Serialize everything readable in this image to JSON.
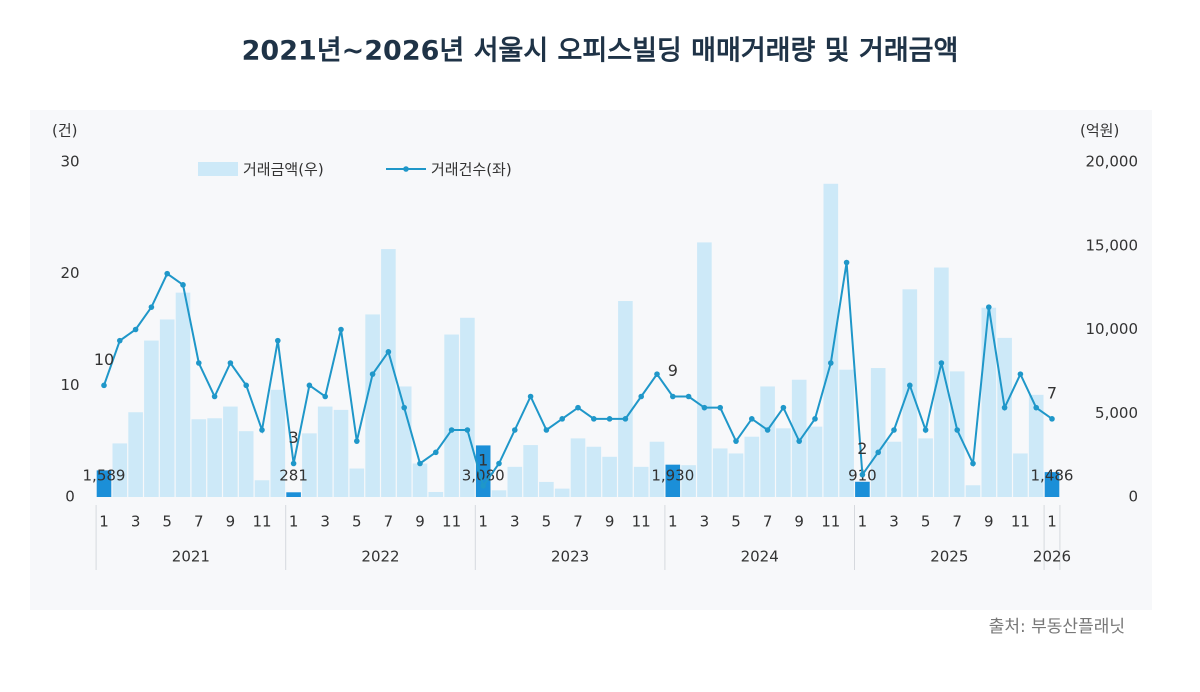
{
  "chart_data": {
    "type": "bar-line",
    "title": "2021년~2026년 서울시 오피스빌딩 매매거래량 및 거래금액",
    "source": "출처: 부동산플래닛",
    "y_label": "(건)",
    "y2_label": "(억원)",
    "categories": [
      "1",
      null,
      "3",
      null,
      "5",
      null,
      "7",
      null,
      "9",
      null,
      "11",
      null,
      "1",
      null,
      "3",
      null,
      "5",
      null,
      "7",
      null,
      "9",
      null,
      "11",
      null,
      "1",
      null,
      "3",
      null,
      "5",
      null,
      "7",
      null,
      "9",
      null,
      "11",
      null,
      "1",
      null,
      "3",
      null,
      "5",
      null,
      "7",
      null,
      "9",
      null,
      "11",
      null,
      "1",
      null,
      "3",
      null,
      "5",
      null,
      "7",
      null,
      "9",
      null,
      "11",
      null,
      "1"
    ],
    "years": [
      "2021",
      "2022",
      "2023",
      "2024",
      "2025",
      "2026"
    ],
    "ylim": [
      0,
      30
    ],
    "yticks": [
      0,
      10,
      20,
      30
    ],
    "y2lim": [
      0,
      20000
    ],
    "y2ticks": [
      {
        "value": 0,
        "label": "0"
      },
      {
        "value": 5000,
        "label": "5,000"
      },
      {
        "value": 10000,
        "label": "10,000"
      },
      {
        "value": 15000,
        "label": "15,000"
      },
      {
        "value": 20000,
        "label": "20,000"
      }
    ],
    "series": [
      {
        "name": "거래금액(우)",
        "type": "bar",
        "axis": "y2",
        "color": "#cde9f8",
        "highlight_color": "#1b8fd8",
        "values": [
          1589,
          3200,
          5060,
          9340,
          10600,
          12200,
          4640,
          4700,
          5400,
          3930,
          1000,
          6400,
          281,
          3800,
          5400,
          5200,
          1700,
          10900,
          14800,
          6600,
          2000,
          300,
          9700,
          10700,
          3080,
          400,
          1800,
          3100,
          900,
          500,
          3500,
          3000,
          2400,
          11700,
          1800,
          3300,
          1930,
          1900,
          15200,
          2900,
          2600,
          3600,
          6600,
          4100,
          7000,
          4200,
          18700,
          7600,
          910,
          7700,
          3300,
          12400,
          3500,
          13700,
          7500,
          700,
          11300,
          9500,
          2600,
          6100,
          1486
        ],
        "value_labels": [
          "1,589",
          null,
          null,
          null,
          null,
          null,
          null,
          null,
          null,
          null,
          null,
          null,
          "281",
          null,
          null,
          null,
          null,
          null,
          null,
          null,
          null,
          null,
          null,
          null,
          "3,080",
          null,
          null,
          null,
          null,
          null,
          null,
          null,
          null,
          null,
          null,
          null,
          "1,930",
          null,
          null,
          null,
          null,
          null,
          null,
          null,
          null,
          null,
          null,
          null,
          "910",
          null,
          null,
          null,
          null,
          null,
          null,
          null,
          null,
          null,
          null,
          null,
          "1,486"
        ]
      },
      {
        "name": "거래건수(좌)",
        "type": "line",
        "axis": "y",
        "color": "#1f97c9",
        "values": [
          10,
          14,
          15,
          17,
          20,
          19,
          12,
          9,
          12,
          10,
          6,
          14,
          3,
          10,
          9,
          15,
          5,
          11,
          13,
          8,
          3,
          4,
          6,
          6,
          1,
          3,
          6,
          9,
          6,
          7,
          8,
          7,
          7,
          7,
          9,
          11,
          9,
          9,
          8,
          8,
          5,
          7,
          6,
          8,
          5,
          7,
          12,
          21,
          2,
          4,
          6,
          10,
          6,
          12,
          6,
          3,
          17,
          8,
          11,
          8,
          7
        ],
        "value_labels": [
          "10",
          null,
          null,
          null,
          null,
          null,
          null,
          null,
          null,
          null,
          null,
          null,
          "3",
          null,
          null,
          null,
          null,
          null,
          null,
          null,
          null,
          null,
          null,
          null,
          "1",
          null,
          null,
          null,
          null,
          null,
          null,
          null,
          null,
          null,
          null,
          null,
          "9",
          null,
          null,
          null,
          null,
          null,
          null,
          null,
          null,
          null,
          null,
          null,
          "2",
          null,
          null,
          null,
          null,
          null,
          null,
          null,
          null,
          null,
          null,
          null,
          "7"
        ]
      }
    ]
  }
}
